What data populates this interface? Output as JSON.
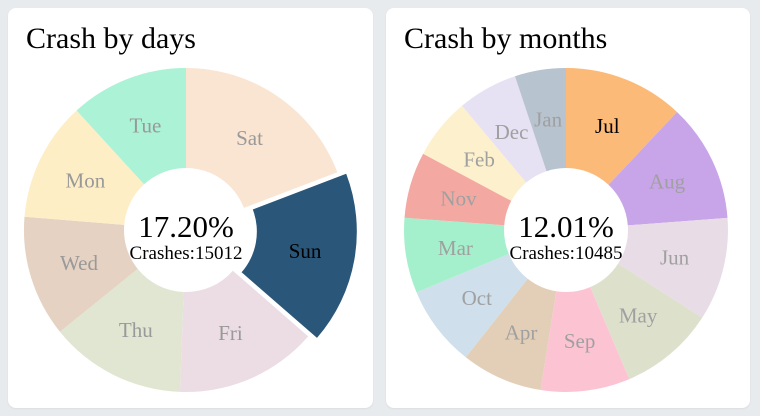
{
  "page": {
    "background_color": "#e8ebee",
    "card_color": "#ffffff"
  },
  "cards": [
    {
      "title": "Crash by days",
      "center_percent": "17.20%",
      "center_detail": "Crashes:15012"
    },
    {
      "title": "Crash by months",
      "center_percent": "12.01%",
      "center_detail": "Crashes:10485"
    }
  ],
  "chart_data": [
    {
      "type": "pie",
      "subtype": "donut",
      "title": "Crash by days",
      "legend_position": "none",
      "start_angle_deg": 0,
      "direction": "clockwise",
      "selected_slice": "Sun",
      "center_label": {
        "percent": "17.20%",
        "detail": "Crashes:15012"
      },
      "label_color": "#999999",
      "selected_label_color": "#000000",
      "slices": [
        {
          "label": "Sat",
          "value_pct": 19.2,
          "color": "#fae5d3",
          "selected": false
        },
        {
          "label": "Sun",
          "value_pct": 17.2,
          "color": "#2a5779",
          "selected": true
        },
        {
          "label": "Fri",
          "value_pct": 14.2,
          "color": "#ecdde4",
          "selected": false
        },
        {
          "label": "Thu",
          "value_pct": 13.6,
          "color": "#e0e6d2",
          "selected": false
        },
        {
          "label": "Wed",
          "value_pct": 12.1,
          "color": "#e5d2c2",
          "selected": false
        },
        {
          "label": "Mon",
          "value_pct": 11.9,
          "color": "#fdeec6",
          "selected": false
        },
        {
          "label": "Tue",
          "value_pct": 11.8,
          "color": "#abf2d6",
          "selected": false
        }
      ]
    },
    {
      "type": "pie",
      "subtype": "donut",
      "title": "Crash by months",
      "legend_position": "none",
      "start_angle_deg": 0,
      "direction": "clockwise",
      "selected_slice": "Jul",
      "center_label": {
        "percent": "12.01%",
        "detail": "Crashes:10485"
      },
      "label_color": "#a0a0a0",
      "selected_label_color": "#000000",
      "slices": [
        {
          "label": "Jul",
          "value_pct": 12.01,
          "color": "#fcba78",
          "selected": true
        },
        {
          "label": "Aug",
          "value_pct": 11.8,
          "color": "#c8a4e8",
          "selected": false
        },
        {
          "label": "Jun",
          "value_pct": 10.3,
          "color": "#e8dce6",
          "selected": false
        },
        {
          "label": "May",
          "value_pct": 9.5,
          "color": "#dde1cc",
          "selected": false
        },
        {
          "label": "Sep",
          "value_pct": 8.9,
          "color": "#fcc3d3",
          "selected": false
        },
        {
          "label": "Apr",
          "value_pct": 8.1,
          "color": "#e3cfb7",
          "selected": false
        },
        {
          "label": "Oct",
          "value_pct": 8.1,
          "color": "#cfdfeb",
          "selected": false
        },
        {
          "label": "Mar",
          "value_pct": 7.5,
          "color": "#a5f0cc",
          "selected": false
        },
        {
          "label": "Nov",
          "value_pct": 6.6,
          "color": "#f3a9a2",
          "selected": false
        },
        {
          "label": "Feb",
          "value_pct": 6.1,
          "color": "#fdf0cc",
          "selected": false
        },
        {
          "label": "Dec",
          "value_pct": 5.99,
          "color": "#e7e1f4",
          "selected": false
        },
        {
          "label": "Jan",
          "value_pct": 5.1,
          "color": "#b7c3cf",
          "selected": false
        }
      ]
    }
  ]
}
